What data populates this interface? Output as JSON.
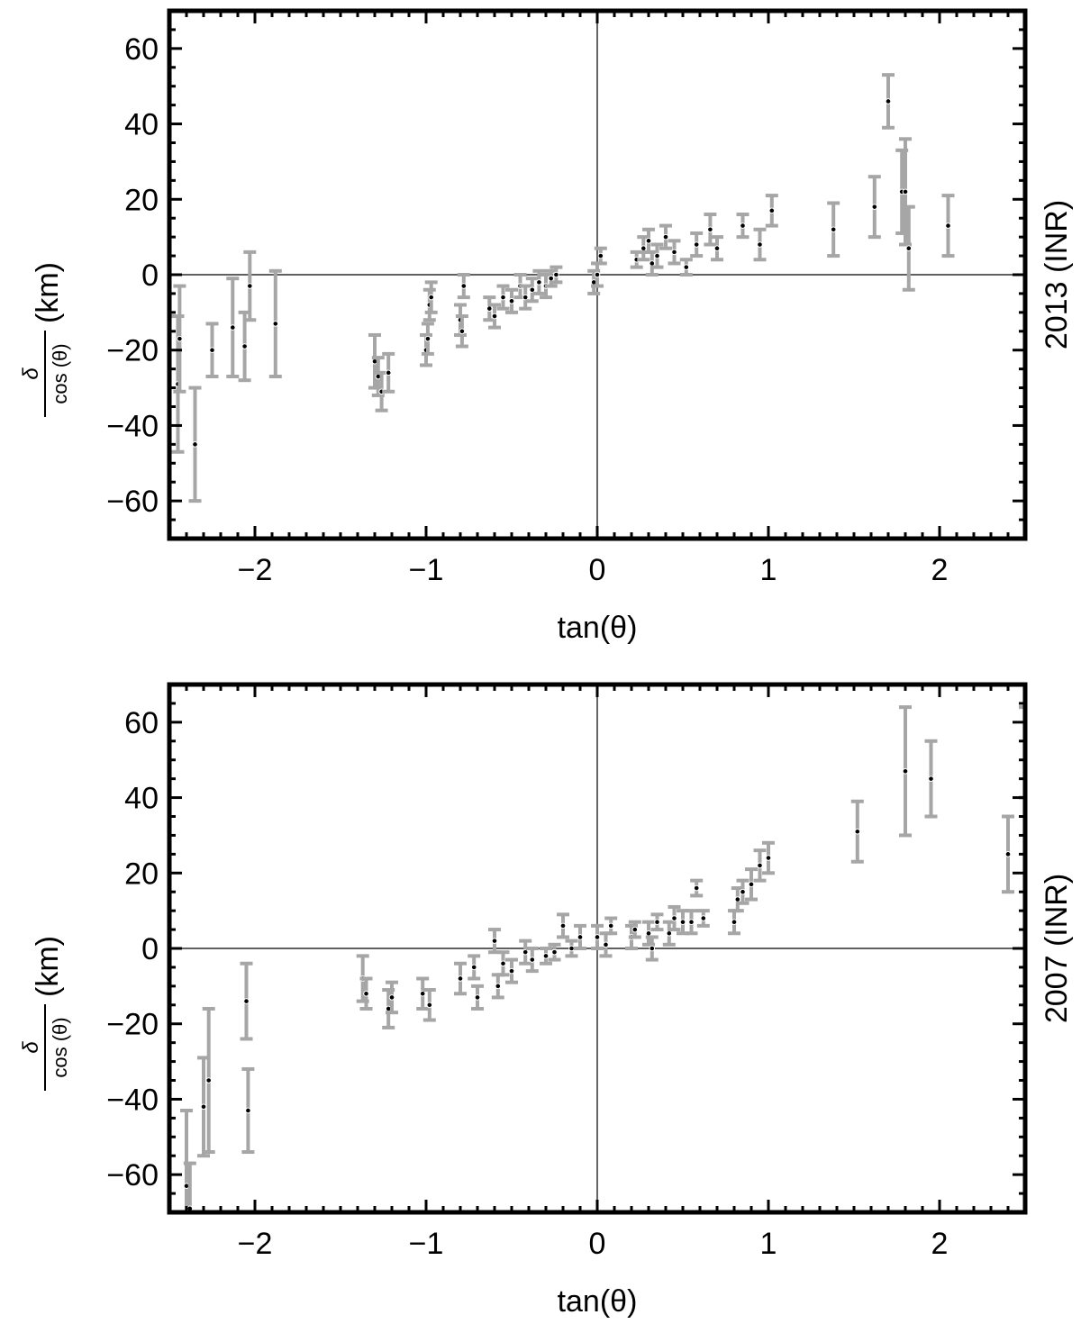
{
  "chart_data": [
    {
      "type": "scatter",
      "error_bars": true,
      "title": "",
      "side_label": "2013 (INR)",
      "xlabel": "tan(θ)",
      "ylabel": {
        "numerator": "δ",
        "denominator": "cos (θ)",
        "unit": "(km)"
      },
      "xlim": [
        -2.5,
        2.5
      ],
      "ylim": [
        -70,
        70
      ],
      "xticks": [
        -2,
        -1,
        0,
        1,
        2
      ],
      "xtick_labels": [
        "−2",
        "−1",
        "0",
        "1",
        "2"
      ],
      "yticks": [
        -60,
        -40,
        -20,
        0,
        20,
        40,
        60
      ],
      "ytick_labels": [
        "−60",
        "−40",
        "−20",
        "0",
        "20",
        "40",
        "60"
      ],
      "grid": false,
      "zero_lines": true,
      "colors": {
        "point": "#000000",
        "error_bar": "#a6a6a6",
        "frame": "#000000"
      },
      "series": [
        {
          "x": [
            -2.45,
            -2.44,
            -2.35,
            -2.25,
            -2.13,
            -2.06,
            -2.03,
            -1.88,
            -1.3,
            -1.28,
            -1.26,
            -1.22,
            -1.0,
            -0.99,
            -0.98,
            -0.97,
            -0.8,
            -0.79,
            -0.78,
            -0.63,
            -0.6,
            -0.55,
            -0.5,
            -0.45,
            -0.42,
            -0.38,
            -0.34,
            -0.3,
            -0.27,
            -0.24,
            -0.02,
            0.0,
            0.02,
            0.23,
            0.27,
            0.3,
            0.32,
            0.35,
            0.4,
            0.45,
            0.52,
            0.58,
            0.66,
            0.7,
            0.85,
            0.95,
            1.02,
            1.38,
            1.62,
            1.7,
            1.78,
            1.8,
            1.82,
            2.05
          ],
          "y": [
            -29,
            -17,
            -45,
            -20,
            -14,
            -19,
            -3,
            -13,
            -23,
            -27,
            -31,
            -26,
            -20,
            -17,
            -8,
            -6,
            -12,
            -15,
            -3,
            -9,
            -11,
            -6,
            -7,
            -3,
            -6,
            -4,
            -2,
            -3,
            -1,
            0,
            -2,
            0,
            5,
            4,
            7,
            9,
            3,
            5,
            10,
            6,
            2,
            8,
            12,
            7,
            13,
            8,
            17,
            12,
            18,
            46,
            22,
            22,
            7,
            13
          ],
          "yerr": [
            18,
            14,
            15,
            7,
            13,
            9,
            9,
            14,
            7,
            5,
            5,
            5,
            4,
            4,
            4,
            4,
            4,
            4,
            3,
            3,
            3,
            3,
            3,
            3,
            3,
            3,
            3,
            3,
            2,
            2,
            3,
            3,
            2,
            2,
            3,
            3,
            3,
            3,
            3,
            3,
            2,
            3,
            4,
            3,
            3,
            4,
            4,
            7,
            8,
            7,
            11,
            14,
            11,
            8
          ]
        }
      ]
    },
    {
      "type": "scatter",
      "error_bars": true,
      "title": "",
      "side_label": "2007 (INR)",
      "xlabel": "tan(θ)",
      "ylabel": {
        "numerator": "δ",
        "denominator": "cos (θ)",
        "unit": "(km)"
      },
      "xlim": [
        -2.5,
        2.5
      ],
      "ylim": [
        -70,
        70
      ],
      "xticks": [
        -2,
        -1,
        0,
        1,
        2
      ],
      "xtick_labels": [
        "−2",
        "−1",
        "0",
        "1",
        "2"
      ],
      "yticks": [
        -60,
        -40,
        -20,
        0,
        20,
        40,
        60
      ],
      "ytick_labels": [
        "−60",
        "−40",
        "−20",
        "0",
        "20",
        "40",
        "60"
      ],
      "grid": false,
      "zero_lines": true,
      "colors": {
        "point": "#000000",
        "error_bar": "#a6a6a6",
        "frame": "#000000"
      },
      "series": [
        {
          "x": [
            -2.4,
            -2.38,
            -2.3,
            -2.27,
            -2.05,
            -2.04,
            -1.37,
            -1.35,
            -1.22,
            -1.2,
            -1.02,
            -0.98,
            -0.8,
            -0.72,
            -0.7,
            -0.6,
            -0.58,
            -0.55,
            -0.5,
            -0.42,
            -0.38,
            -0.3,
            -0.25,
            -0.2,
            -0.15,
            -0.1,
            0.0,
            0.05,
            0.08,
            0.2,
            0.22,
            0.3,
            0.32,
            0.35,
            0.42,
            0.45,
            0.5,
            0.55,
            0.58,
            0.62,
            0.8,
            0.82,
            0.85,
            0.9,
            0.95,
            1.0,
            1.52,
            1.8,
            1.95,
            2.4,
            2.5
          ],
          "y": [
            -63,
            -69,
            -42,
            -35,
            -14,
            -43,
            -8,
            -12,
            -16,
            -13,
            -12,
            -15,
            -8,
            -5,
            -13,
            2,
            -10,
            -4,
            -6,
            -1,
            -3,
            -2,
            -1,
            6,
            0,
            3,
            3,
            1,
            6,
            3,
            5,
            4,
            0,
            7,
            4,
            8,
            7,
            7,
            16,
            8,
            7,
            13,
            15,
            17,
            22,
            24,
            31,
            47,
            45,
            25,
            52
          ],
          "yerr": [
            20,
            12,
            13,
            19,
            10,
            11,
            6,
            4,
            5,
            4,
            4,
            4,
            4,
            3,
            3,
            3,
            3,
            3,
            3,
            3,
            3,
            2,
            2,
            3,
            2,
            3,
            3,
            3,
            2,
            3,
            2,
            3,
            3,
            2,
            3,
            3,
            3,
            3,
            2,
            2,
            3,
            3,
            3,
            4,
            4,
            4,
            8,
            17,
            10,
            10,
            12
          ]
        }
      ]
    }
  ]
}
